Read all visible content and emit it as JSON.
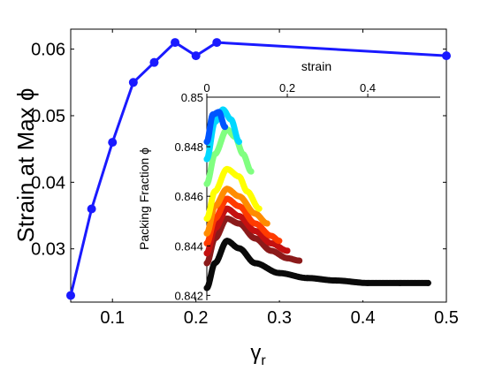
{
  "chart_data": [
    {
      "type": "line",
      "xlabel": "γr",
      "ylabel": "Strain at Max ϕ",
      "xlim": [
        0.05,
        0.5
      ],
      "ylim": [
        0.022,
        0.063
      ],
      "xticks": [
        "0.1",
        "0.2",
        "0.3",
        "0.4",
        "0.5"
      ],
      "xtick_values": [
        0.1,
        0.2,
        0.3,
        0.4,
        0.5
      ],
      "yticks": [
        "0.03",
        "0.04",
        "0.05",
        "0.06"
      ],
      "ytick_values": [
        0.03,
        0.04,
        0.05,
        0.06
      ],
      "series": [
        {
          "color": "#1a1aff",
          "x": [
            0.05,
            0.075,
            0.1,
            0.125,
            0.15,
            0.175,
            0.2,
            0.225,
            0.5
          ],
          "y": [
            0.023,
            0.036,
            0.046,
            0.055,
            0.058,
            0.061,
            0.059,
            0.061,
            0.059
          ]
        }
      ]
    },
    {
      "type": "scatter",
      "xlabel": "strain",
      "ylabel": "Packing Fraction ϕ",
      "xlim": [
        0,
        0.58
      ],
      "ylim": [
        0.8418,
        0.85
      ],
      "xticks": [
        "0",
        "0.2",
        "0.4"
      ],
      "xtick_values": [
        0,
        0.2,
        0.4
      ],
      "yticks": [
        "0.842",
        "0.844",
        "0.846",
        "0.848",
        "0.85"
      ],
      "ytick_values": [
        0.842,
        0.844,
        0.846,
        0.848,
        0.85
      ],
      "series": [
        {
          "color": "#0a0a0a",
          "x": [
            0,
            0.02,
            0.05,
            0.08,
            0.12,
            0.18,
            0.25,
            0.32,
            0.4,
            0.48,
            0.55
          ],
          "y": [
            0.8423,
            0.8433,
            0.8442,
            0.8439,
            0.8433,
            0.8429,
            0.8427,
            0.8426,
            0.8425,
            0.8425,
            0.8425
          ]
        },
        {
          "color": "#8b1a1a",
          "x": [
            0,
            0.02,
            0.05,
            0.08,
            0.12,
            0.16,
            0.2,
            0.23
          ],
          "y": [
            0.8433,
            0.8443,
            0.8451,
            0.8449,
            0.8443,
            0.8438,
            0.8435,
            0.8434
          ]
        },
        {
          "color": "#c41010",
          "x": [
            0,
            0.02,
            0.05,
            0.08,
            0.12,
            0.16,
            0.2
          ],
          "y": [
            0.8437,
            0.8447,
            0.8455,
            0.8452,
            0.8446,
            0.8441,
            0.8438
          ]
        },
        {
          "color": "#ff3b00",
          "x": [
            0,
            0.02,
            0.05,
            0.08,
            0.12,
            0.16,
            0.18
          ],
          "y": [
            0.8441,
            0.8451,
            0.8459,
            0.8456,
            0.8449,
            0.8444,
            0.8442
          ]
        },
        {
          "color": "#ff8c00",
          "x": [
            0,
            0.02,
            0.05,
            0.08,
            0.12,
            0.15
          ],
          "y": [
            0.8445,
            0.8456,
            0.8463,
            0.846,
            0.8453,
            0.8449
          ]
        },
        {
          "color": "#ffff00",
          "x": [
            0,
            0.02,
            0.05,
            0.08,
            0.1,
            0.13
          ],
          "y": [
            0.8451,
            0.8462,
            0.8471,
            0.8468,
            0.8462,
            0.8455
          ]
        },
        {
          "color": "#80ff80",
          "x": [
            0,
            0.02,
            0.05,
            0.07,
            0.09,
            0.11
          ],
          "y": [
            0.8465,
            0.8477,
            0.8487,
            0.8484,
            0.8477,
            0.847
          ]
        },
        {
          "color": "#00d8ff",
          "x": [
            0,
            0.02,
            0.04,
            0.06,
            0.08
          ],
          "y": [
            0.8475,
            0.849,
            0.8495,
            0.8491,
            0.8482
          ]
        },
        {
          "color": "#0055ff",
          "x": [
            0,
            0.015,
            0.03,
            0.045
          ],
          "y": [
            0.8482,
            0.8493,
            0.8494,
            0.8488
          ]
        }
      ]
    }
  ]
}
